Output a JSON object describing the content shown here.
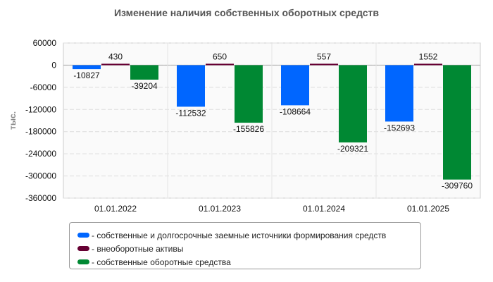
{
  "chart_data": {
    "type": "bar",
    "title": "Изменение наличия собственных оборотных средств",
    "ylabel": "тыс.",
    "xlabel": "",
    "ylim": [
      -360000,
      60000
    ],
    "yticks": [
      60000,
      0,
      -60000,
      -120000,
      -180000,
      -240000,
      -300000,
      -360000
    ],
    "categories": [
      "01.01.2022",
      "01.01.2023",
      "01.01.2024",
      "01.01.2025"
    ],
    "series": [
      {
        "name": "собственные и долгосрочные заемные источники формирования средств",
        "color": "#0066ff",
        "values": [
          -10827,
          -112532,
          -108664,
          -152693
        ]
      },
      {
        "name": "внеоборотные активы",
        "color": "#660033",
        "values": [
          430,
          650,
          557,
          1552
        ]
      },
      {
        "name": "собственные оборотные средства",
        "color": "#008833",
        "values": [
          -39204,
          -155826,
          -209321,
          -309760
        ]
      }
    ],
    "grid": true,
    "legend": "bottom"
  }
}
